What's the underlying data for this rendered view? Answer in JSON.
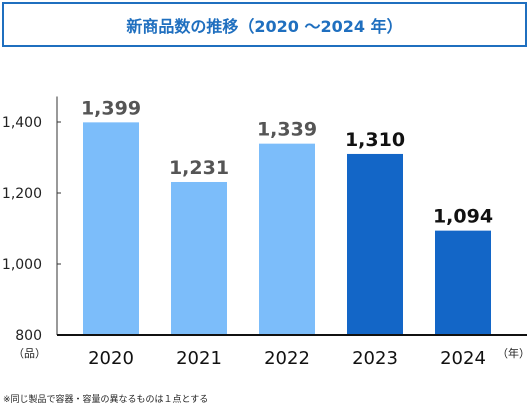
{
  "chart_data": {
    "type": "bar",
    "title": "新商品数の推移（2020 ～2024 年）",
    "categories": [
      "2020",
      "2021",
      "2022",
      "2023",
      "2024"
    ],
    "values": [
      1399,
      1231,
      1339,
      1310,
      1094
    ],
    "value_labels": [
      "1,399",
      "1,231",
      "1,339",
      "1,310",
      "1,094"
    ],
    "ylim": [
      800,
      1500
    ],
    "yticks": [
      800,
      1000,
      1200,
      1400
    ],
    "ytick_labels": [
      "800",
      "1,000",
      "1,200",
      "1,400"
    ],
    "ylabel": "（品）",
    "xlabel": "（年）",
    "grid": false,
    "colors": [
      "#7cbdfa",
      "#7cbdfa",
      "#7cbdfa",
      "#1366c7",
      "#1366c7"
    ],
    "label_colors": [
      "#555555",
      "#555555",
      "#555555",
      "#111111",
      "#111111"
    ]
  },
  "footnote": "※同じ製品で容器・容量の異なるものは１点とする"
}
